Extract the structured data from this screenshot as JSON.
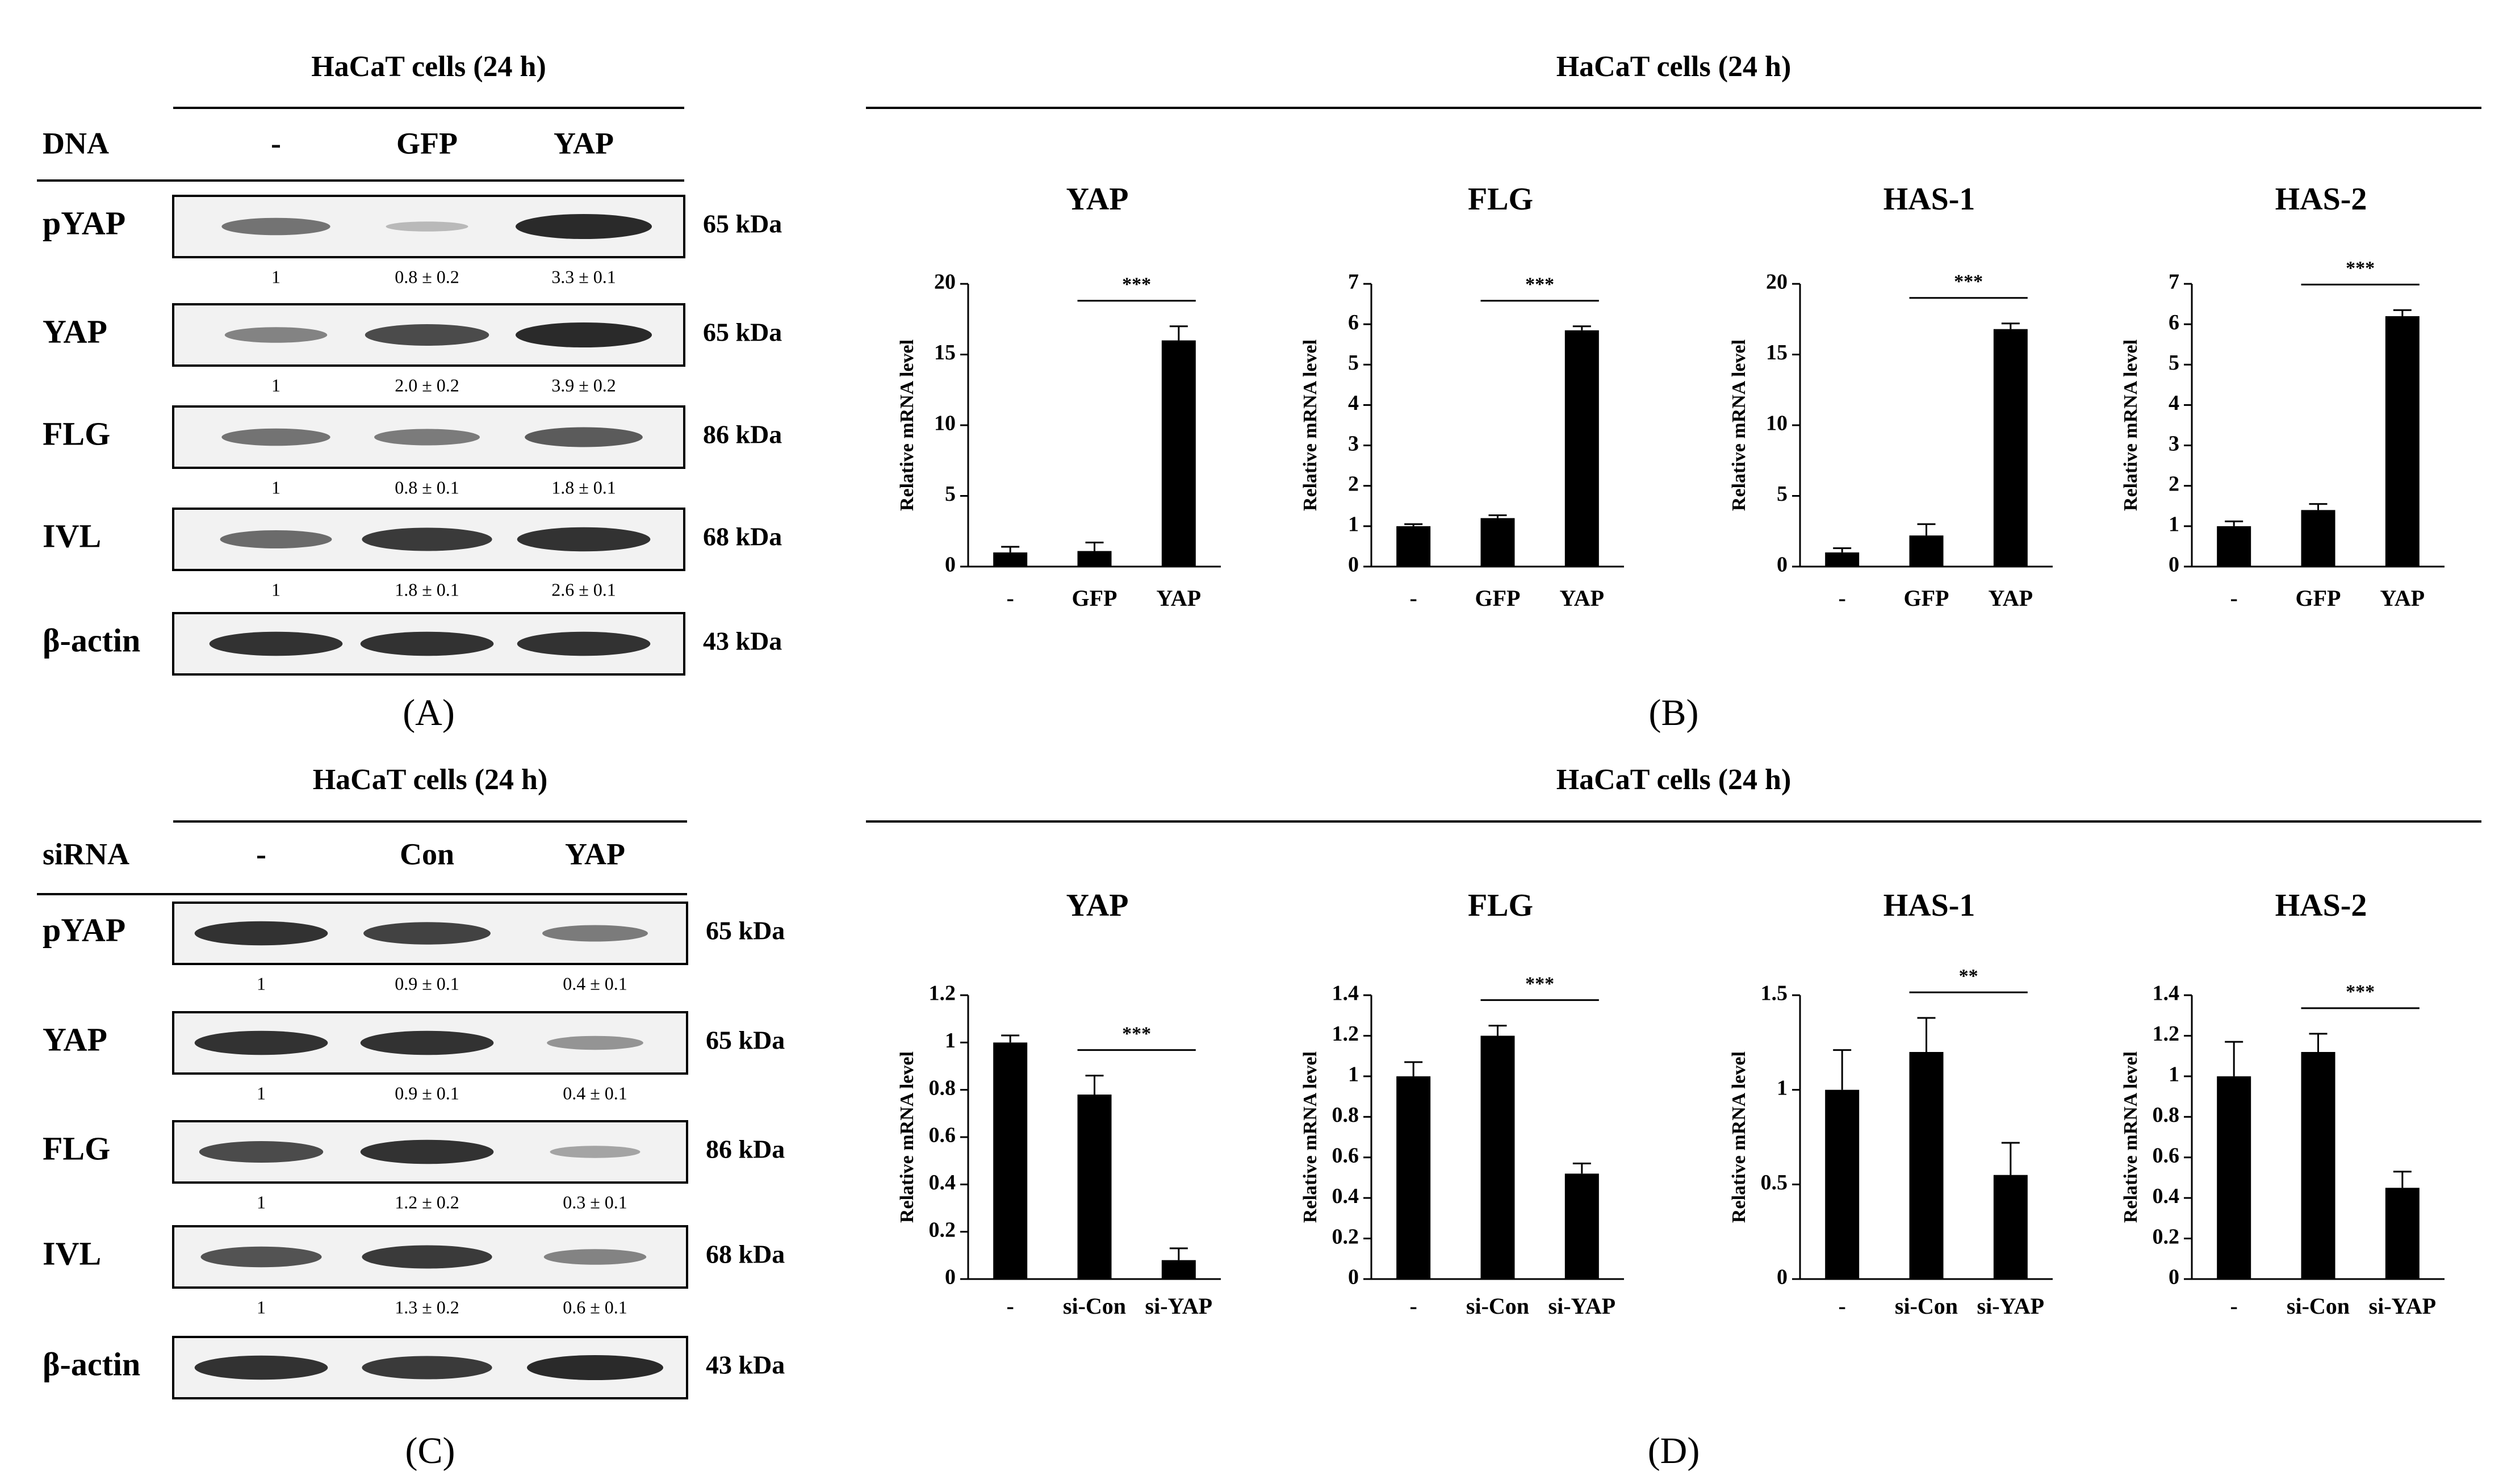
{
  "panels": {
    "A": {
      "label": "(A)",
      "title": "HaCaT cells (24 h)",
      "row_label": "DNA",
      "columns": [
        "-",
        "GFP",
        "YAP"
      ],
      "blots": [
        {
          "name": "pYAP",
          "kda": "65 kDa",
          "quant": [
            "1",
            "0.8 ± 0.2",
            "3.3 ± 0.1"
          ],
          "intensity": [
            0.55,
            0.12,
            1.0
          ]
        },
        {
          "name": "YAP",
          "kda": "65 kDa",
          "quant": [
            "1",
            "2.0 ± 0.2",
            "3.9 ± 0.2"
          ],
          "intensity": [
            0.45,
            0.8,
            1.0
          ]
        },
        {
          "name": "FLG",
          "kda": "86 kDa",
          "quant": [
            "1",
            "0.8 ± 0.1",
            "1.8 ± 0.1"
          ],
          "intensity": [
            0.55,
            0.5,
            0.7
          ]
        },
        {
          "name": "IVL",
          "kda": "68 kDa",
          "quant": [
            "1",
            "1.8 ± 0.1",
            "2.6 ± 0.1"
          ],
          "intensity": [
            0.6,
            0.9,
            0.95
          ]
        },
        {
          "name": "β-actin",
          "kda": "43 kDa",
          "quant": [],
          "intensity": [
            0.95,
            0.95,
            0.95
          ]
        }
      ]
    },
    "B": {
      "label": "(B)",
      "title": "HaCaT cells (24 h)"
    },
    "C": {
      "label": "(C)",
      "title": "HaCaT cells (24 h)",
      "row_label": "siRNA",
      "columns": [
        "-",
        "Con",
        "YAP"
      ],
      "blots": [
        {
          "name": "pYAP",
          "kda": "65 kDa",
          "quant": [
            "1",
            "0.9 ± 0.1",
            "0.4 ± 0.1"
          ],
          "intensity": [
            0.95,
            0.85,
            0.5
          ]
        },
        {
          "name": "YAP",
          "kda": "65 kDa",
          "quant": [
            "1",
            "0.9 ± 0.1",
            "0.4 ± 0.1"
          ],
          "intensity": [
            0.95,
            0.95,
            0.35
          ]
        },
        {
          "name": "FLG",
          "kda": "86 kDa",
          "quant": [
            "1",
            "1.2 ± 0.2",
            "0.3 ± 0.1"
          ],
          "intensity": [
            0.8,
            0.95,
            0.25
          ]
        },
        {
          "name": "IVL",
          "kda": "68 kDa",
          "quant": [
            "1",
            "1.3 ± 0.2",
            "0.6 ± 0.1"
          ],
          "intensity": [
            0.75,
            0.9,
            0.45
          ]
        },
        {
          "name": "β-actin",
          "kda": "43 kDa",
          "quant": [],
          "intensity": [
            0.95,
            0.9,
            1.0
          ]
        }
      ]
    },
    "D": {
      "label": "(D)",
      "title": "HaCaT cells (24 h)"
    }
  },
  "chart_data": [
    {
      "panel": "B",
      "type": "bar",
      "title": "YAP",
      "ylabel": "Relative mRNA level",
      "categories": [
        "-",
        "GFP",
        "YAP"
      ],
      "values": [
        1.0,
        1.1,
        16.0
      ],
      "errors": [
        0.4,
        0.6,
        1.0
      ],
      "ylim": [
        0,
        20
      ],
      "ticks": [
        "0",
        "5",
        "10",
        "15",
        "20"
      ],
      "sig": {
        "from": 1,
        "to": 2,
        "text": "***"
      }
    },
    {
      "panel": "B",
      "type": "bar",
      "title": "FLG",
      "ylabel": "Relative mRNA level",
      "categories": [
        "-",
        "GFP",
        "YAP"
      ],
      "values": [
        1.0,
        1.2,
        5.85
      ],
      "errors": [
        0.05,
        0.07,
        0.1
      ],
      "ylim": [
        0,
        7
      ],
      "ticks": [
        "0",
        "1",
        "2",
        "3",
        "4",
        "5",
        "6",
        "7"
      ],
      "sig": {
        "from": 1,
        "to": 2,
        "text": "***"
      }
    },
    {
      "panel": "B",
      "type": "bar",
      "title": "HAS-1",
      "ylabel": "Relative mRNA level",
      "categories": [
        "-",
        "GFP",
        "YAP"
      ],
      "values": [
        1.0,
        2.2,
        16.8
      ],
      "errors": [
        0.3,
        0.8,
        0.4
      ],
      "ylim": [
        0,
        20
      ],
      "ticks": [
        "0",
        "5",
        "10",
        "15",
        "20"
      ],
      "sig": {
        "from": 1,
        "to": 2,
        "text": "***"
      }
    },
    {
      "panel": "B",
      "type": "bar",
      "title": "HAS-2",
      "ylabel": "Relative mRNA level",
      "categories": [
        "-",
        "GFP",
        "YAP"
      ],
      "values": [
        1.0,
        1.4,
        6.2
      ],
      "errors": [
        0.12,
        0.15,
        0.15
      ],
      "ylim": [
        0,
        7
      ],
      "ticks": [
        "0",
        "1",
        "2",
        "3",
        "4",
        "5",
        "6",
        "7"
      ],
      "sig": {
        "from": 1,
        "to": 2,
        "text": "***"
      }
    },
    {
      "panel": "D",
      "type": "bar",
      "title": "YAP",
      "ylabel": "Relative mRNA level",
      "categories": [
        "-",
        "si-Con",
        "si-YAP"
      ],
      "values": [
        1.0,
        0.78,
        0.08
      ],
      "errors": [
        0.03,
        0.08,
        0.05
      ],
      "ylim": [
        0,
        1.2
      ],
      "ticks": [
        "0",
        "0.2",
        "0.4",
        "0.6",
        "0.8",
        "1",
        "1.2"
      ],
      "sig": {
        "from": 1,
        "to": 2,
        "text": "***"
      }
    },
    {
      "panel": "D",
      "type": "bar",
      "title": "FLG",
      "ylabel": "Relative mRNA level",
      "categories": [
        "-",
        "si-Con",
        "si-YAP"
      ],
      "values": [
        1.0,
        1.2,
        0.52
      ],
      "errors": [
        0.07,
        0.05,
        0.05
      ],
      "ylim": [
        0,
        1.4
      ],
      "ticks": [
        "0",
        "0.2",
        "0.4",
        "0.6",
        "0.8",
        "1",
        "1.2",
        "1.4"
      ],
      "sig": {
        "from": 1,
        "to": 2,
        "text": "***"
      }
    },
    {
      "panel": "D",
      "type": "bar",
      "title": "HAS-1",
      "ylabel": "Relative mRNA level",
      "categories": [
        "-",
        "si-Con",
        "si-YAP"
      ],
      "values": [
        1.0,
        1.2,
        0.55
      ],
      "errors": [
        0.21,
        0.18,
        0.17
      ],
      "ylim": [
        0,
        1.5
      ],
      "ticks": [
        "0",
        "0.5",
        "1",
        "1.5"
      ],
      "sig": {
        "from": 1,
        "to": 2,
        "text": "**"
      }
    },
    {
      "panel": "D",
      "type": "bar",
      "title": "HAS-2",
      "ylabel": "Relative mRNA level",
      "categories": [
        "-",
        "si-Con",
        "si-YAP"
      ],
      "values": [
        1.0,
        1.12,
        0.45
      ],
      "errors": [
        0.17,
        0.09,
        0.08
      ],
      "ylim": [
        0,
        1.4
      ],
      "ticks": [
        "0",
        "0.2",
        "0.4",
        "0.6",
        "0.8",
        "1",
        "1.2",
        "1.4"
      ],
      "sig": {
        "from": 1,
        "to": 2,
        "text": "***"
      }
    }
  ]
}
